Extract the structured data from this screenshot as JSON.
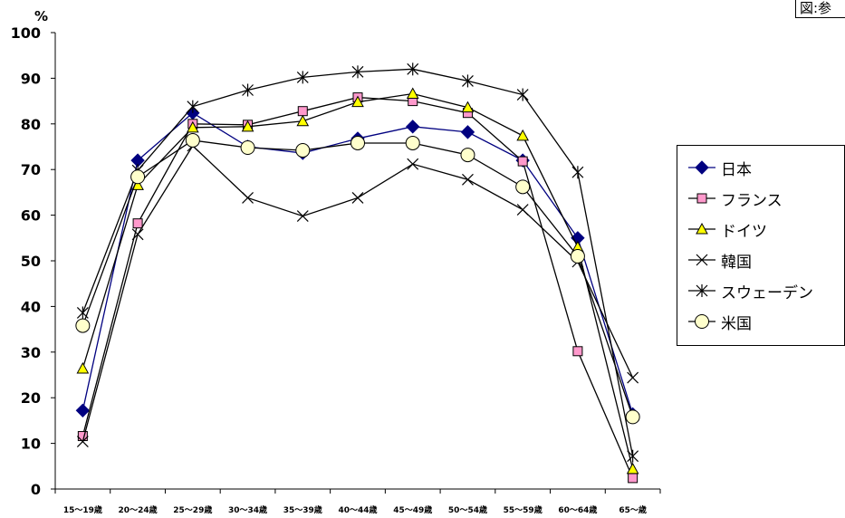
{
  "figure_label": "図:参",
  "chart_data": {
    "type": "line",
    "ylabel": "%",
    "ylim": [
      0,
      100
    ],
    "yticks": [
      "0",
      "10",
      "20",
      "30",
      "40",
      "50",
      "60",
      "70",
      "80",
      "90",
      "100"
    ],
    "categories": [
      "15〜19歳",
      "20〜24歳",
      "25〜29歳",
      "30〜34歳",
      "35〜39歳",
      "40〜44歳",
      "45〜49歳",
      "50〜54歳",
      "55〜59歳",
      "60〜64歳",
      "65〜歳"
    ],
    "grid": false,
    "legend_position": "right",
    "series": [
      {
        "name": "日本",
        "marker": "diamond",
        "color": "#000080",
        "markerFill": "#000080",
        "values": [
          17.2,
          72.0,
          82.4,
          75.0,
          73.6,
          76.8,
          79.4,
          78.2,
          72.0,
          55.0,
          16.4
        ]
      },
      {
        "name": "フランス",
        "marker": "square",
        "color": "#000000",
        "markerFill": "#ff99cc",
        "values": [
          11.6,
          58.2,
          80.0,
          79.8,
          82.8,
          85.8,
          85.0,
          82.4,
          71.8,
          30.2,
          2.4
        ]
      },
      {
        "name": "ドイツ",
        "marker": "triangle",
        "color": "#000000",
        "markerFill": "#ffff00",
        "values": [
          26.4,
          66.6,
          79.2,
          79.4,
          80.6,
          84.8,
          86.6,
          83.6,
          77.4,
          53.0,
          4.4
        ]
      },
      {
        "name": "韓国",
        "marker": "x",
        "color": "#000000",
        "markerFill": "none",
        "values": [
          10.4,
          55.8,
          75.2,
          63.8,
          59.8,
          63.8,
          71.2,
          67.8,
          61.2,
          49.8,
          24.4
        ]
      },
      {
        "name": "スウェーデン",
        "marker": "asterisk",
        "color": "#000000",
        "markerFill": "none",
        "values": [
          38.6,
          69.8,
          83.8,
          87.4,
          90.2,
          91.4,
          92.0,
          89.4,
          86.4,
          69.4,
          7.2
        ]
      },
      {
        "name": "米国",
        "marker": "circle",
        "color": "#000000",
        "markerFill": "#ffffcc",
        "values": [
          35.8,
          68.4,
          76.4,
          74.8,
          74.2,
          75.8,
          75.8,
          73.2,
          66.2,
          51.0,
          15.8
        ]
      }
    ]
  }
}
